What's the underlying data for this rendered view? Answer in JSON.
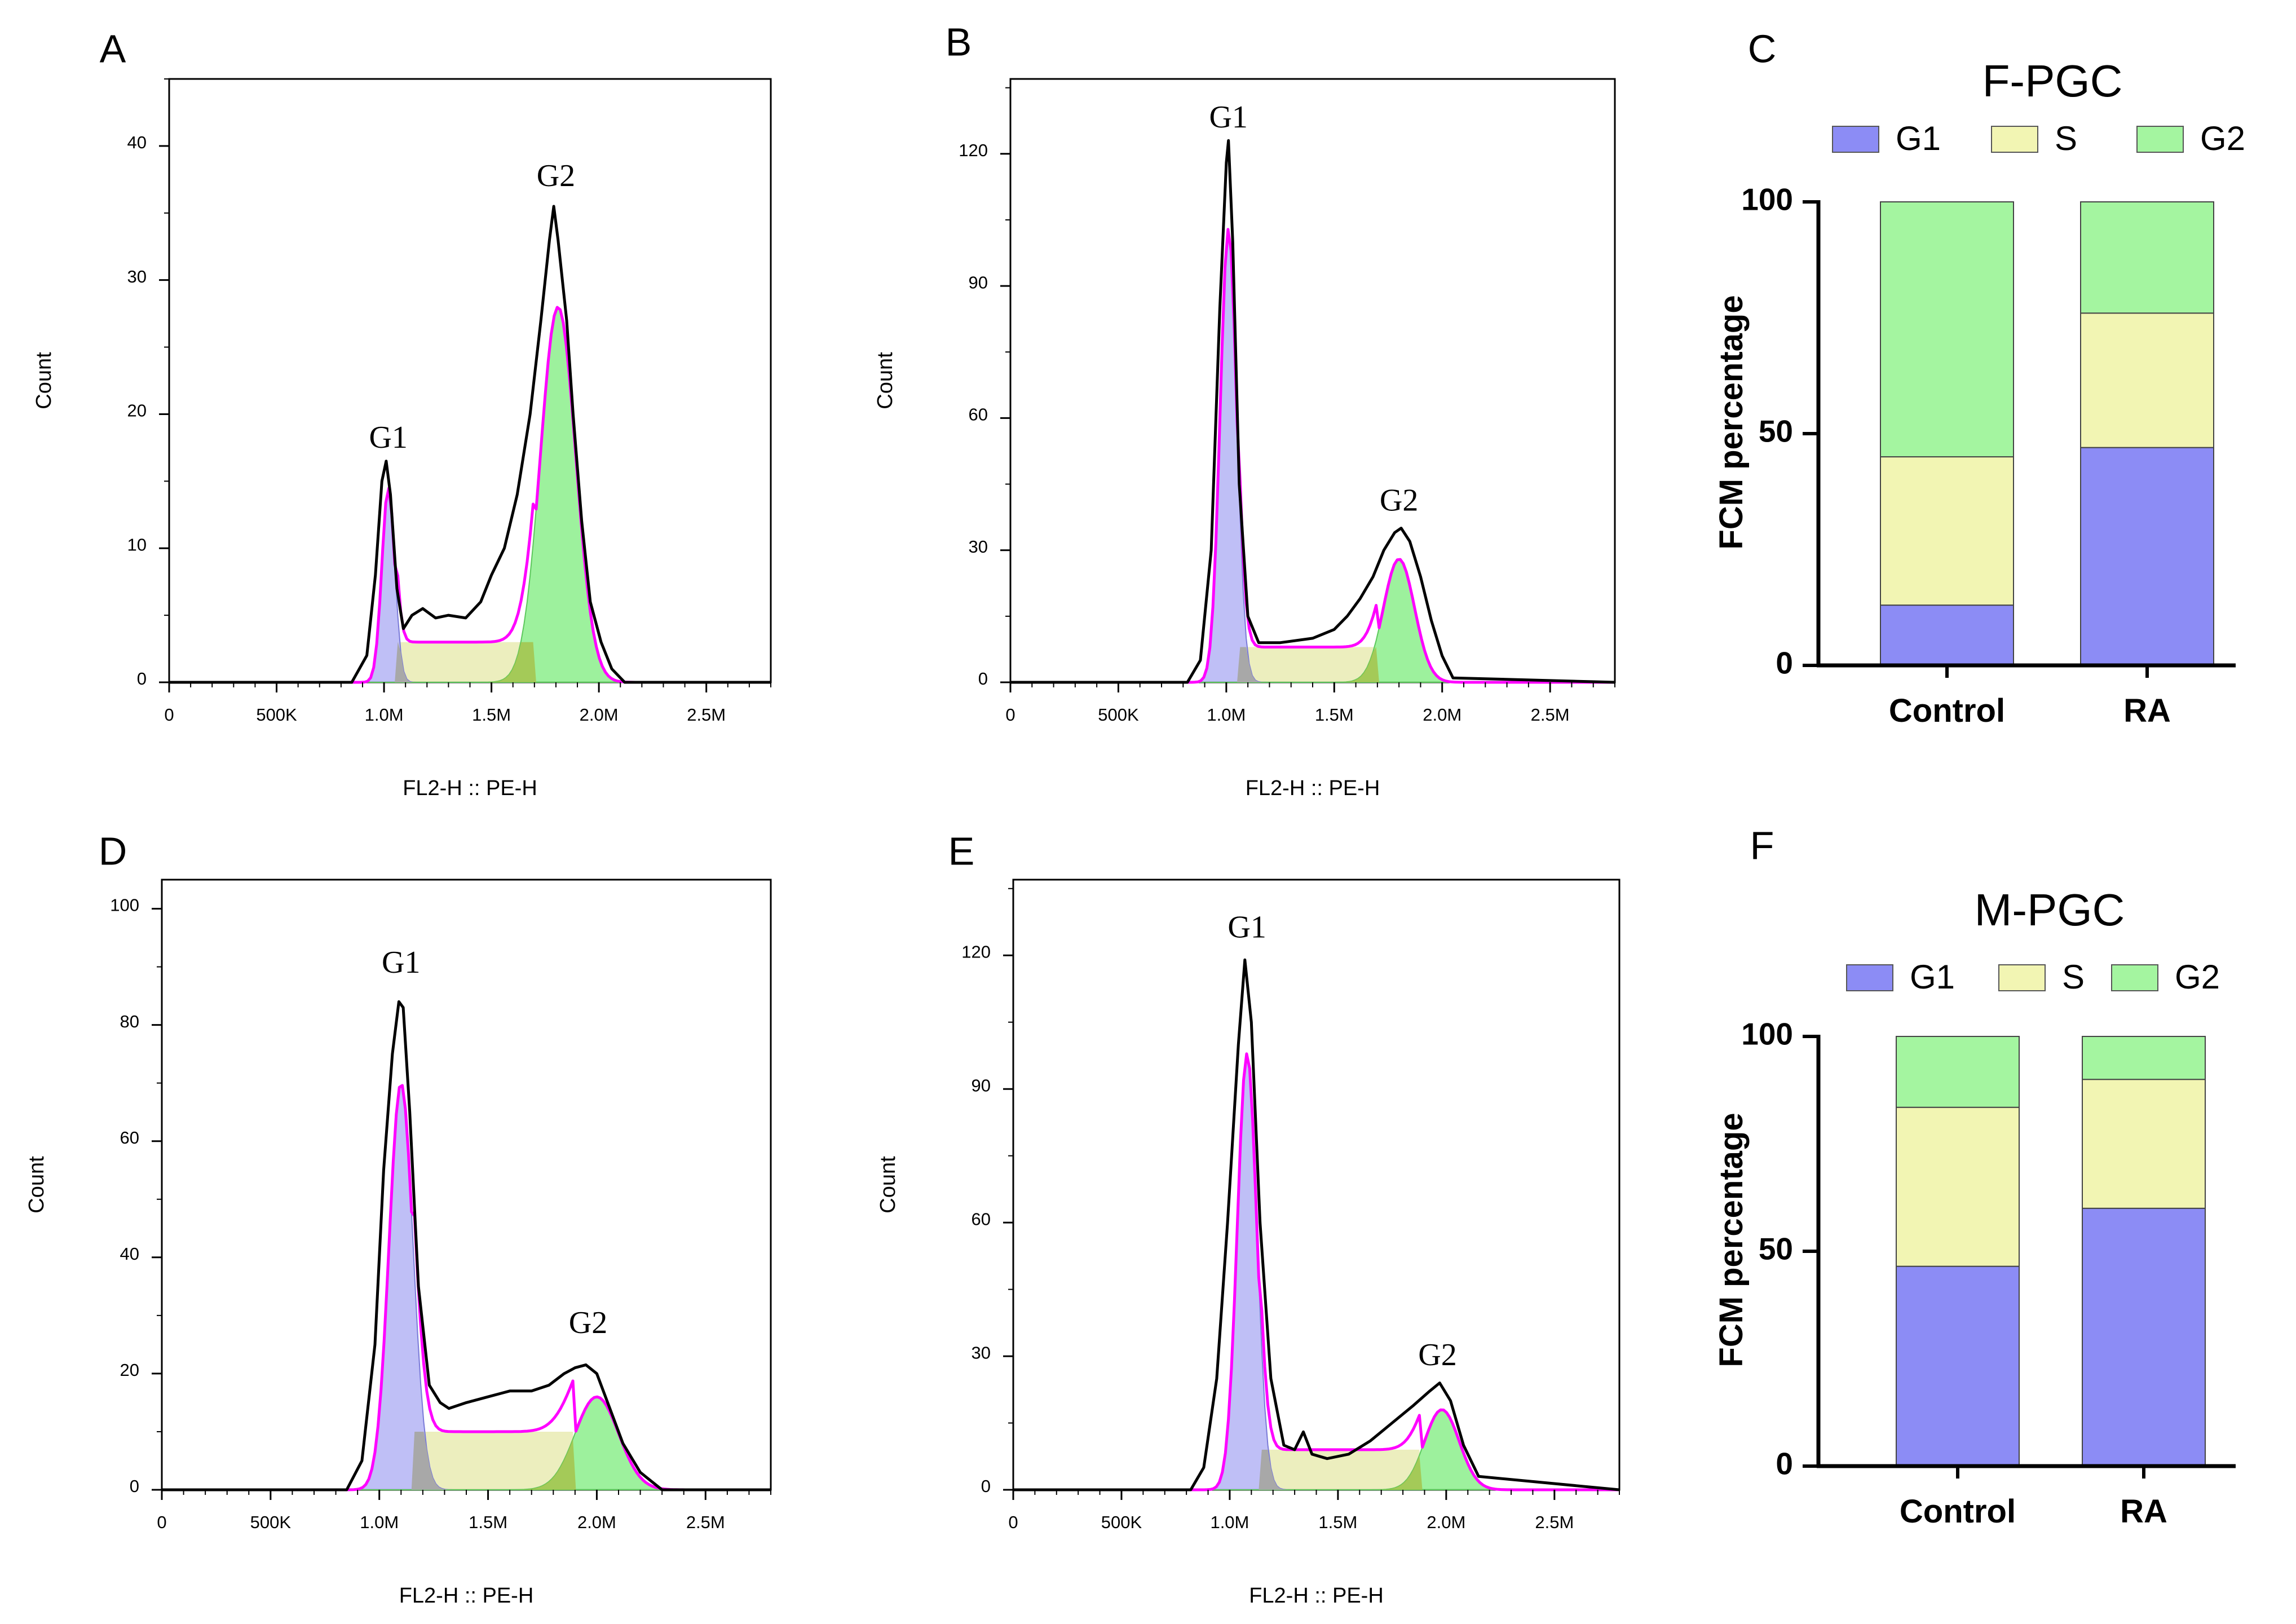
{
  "colors": {
    "g1": "#8c8cf5",
    "s": "#f2f5b3",
    "g2": "#a4f5a0",
    "g1_fill": "#b4b4f5",
    "s_fill": "#e9ebb3",
    "g2_fill": "#8cef8c",
    "overlap": "#a8a8a8",
    "model": "#ff00ff",
    "data": "#000000"
  },
  "chart_data": [
    {
      "id": "A",
      "panel_label": "A",
      "type": "area",
      "xlabel": "FL2-H :: PE-H",
      "ylabel": "Count",
      "xlim": [
        0,
        2800000
      ],
      "ylim": [
        0,
        45
      ],
      "xticks": [
        0,
        500000,
        1000000,
        1500000,
        2000000,
        2500000
      ],
      "xtick_labels": [
        "0",
        "500K",
        "1.0M",
        "1.5M",
        "2.0M",
        "2.5M"
      ],
      "yticks": [
        0,
        10,
        20,
        30,
        40
      ],
      "ytick_labels": [
        "0",
        "10",
        "20",
        "30",
        "40"
      ],
      "peak_labels": [
        {
          "text": "G1",
          "x": 1020000,
          "y": 17.5
        },
        {
          "text": "G2",
          "x": 1800000,
          "y": 37
        }
      ],
      "g1": {
        "mu": 1020000,
        "sd": 30000,
        "h": 14.5
      },
      "g2": {
        "mu": 1810000,
        "sd": 82000,
        "h": 28
      },
      "s_level": 3,
      "s_range": [
        1060000,
        1700000
      ],
      "data_x": [
        0,
        850000,
        920000,
        960000,
        990000,
        1010000,
        1030000,
        1060000,
        1090000,
        1130000,
        1180000,
        1240000,
        1300000,
        1380000,
        1450000,
        1500000,
        1560000,
        1620000,
        1680000,
        1730000,
        1770000,
        1790000,
        1810000,
        1850000,
        1880000,
        1920000,
        1960000,
        2010000,
        2060000,
        2120000,
        2800000
      ],
      "data_y": [
        0,
        0,
        2,
        8,
        15,
        16.5,
        14,
        7,
        4,
        5,
        5.5,
        4.8,
        5,
        4.8,
        6,
        8,
        10,
        14,
        20,
        27,
        33,
        35.5,
        33,
        27,
        20,
        12,
        6,
        3,
        1,
        0,
        0
      ]
    },
    {
      "id": "B",
      "panel_label": "B",
      "type": "area",
      "xlabel": "FL2-H :: PE-H",
      "ylabel": "Count",
      "xlim": [
        0,
        2800000
      ],
      "ylim": [
        0,
        137
      ],
      "xticks": [
        0,
        500000,
        1000000,
        1500000,
        2000000,
        2500000
      ],
      "xtick_labels": [
        "0",
        "500K",
        "1.0M",
        "1.5M",
        "2.0M",
        "2.5M"
      ],
      "yticks": [
        0,
        30,
        60,
        90,
        120
      ],
      "ytick_labels": [
        "0",
        "30",
        "60",
        "90",
        "120"
      ],
      "peak_labels": [
        {
          "text": "G1",
          "x": 1010000,
          "y": 126
        },
        {
          "text": "G2",
          "x": 1800000,
          "y": 39
        }
      ],
      "g1": {
        "mu": 1010000,
        "sd": 38000,
        "h": 103
      },
      "g2": {
        "mu": 1800000,
        "sd": 72000,
        "h": 28
      },
      "s_level": 8,
      "s_range": [
        1060000,
        1700000
      ],
      "data_x": [
        0,
        820000,
        880000,
        930000,
        970000,
        1000000,
        1010000,
        1030000,
        1060000,
        1100000,
        1150000,
        1250000,
        1400000,
        1500000,
        1560000,
        1620000,
        1680000,
        1730000,
        1780000,
        1810000,
        1850000,
        1900000,
        1950000,
        2000000,
        2050000,
        2800000
      ],
      "data_y": [
        0,
        0,
        5,
        30,
        85,
        118,
        123,
        100,
        45,
        15,
        9,
        9,
        10,
        12,
        15,
        19,
        24,
        30,
        34,
        35,
        32,
        24,
        14,
        6,
        1,
        0
      ]
    },
    {
      "id": "D",
      "panel_label": "D",
      "type": "area",
      "xlabel": "FL2-H :: PE-H",
      "ylabel": "Count",
      "xlim": [
        0,
        2800000
      ],
      "ylim": [
        0,
        105
      ],
      "xticks": [
        0,
        500000,
        1000000,
        1500000,
        2000000,
        2500000
      ],
      "xtick_labels": [
        "0",
        "500K",
        "1.0M",
        "1.5M",
        "2.0M",
        "2.5M"
      ],
      "yticks": [
        0,
        20,
        40,
        60,
        80,
        100
      ],
      "ytick_labels": [
        "0",
        "20",
        "40",
        "60",
        "80",
        "100"
      ],
      "peak_labels": [
        {
          "text": "G1",
          "x": 1100000,
          "y": 89
        },
        {
          "text": "G2",
          "x": 1960000,
          "y": 27
        }
      ],
      "g1": {
        "mu": 1100000,
        "sd": 55000,
        "h": 70
      },
      "g2": {
        "mu": 2000000,
        "sd": 100000,
        "h": 16
      },
      "s_level": 10,
      "s_range": [
        1150000,
        1900000
      ],
      "data_x": [
        0,
        850000,
        920000,
        980000,
        1020000,
        1060000,
        1090000,
        1110000,
        1140000,
        1180000,
        1230000,
        1280000,
        1320000,
        1400000,
        1500000,
        1600000,
        1700000,
        1780000,
        1850000,
        1900000,
        1950000,
        2000000,
        2060000,
        2120000,
        2200000,
        2300000,
        2800000
      ],
      "data_y": [
        0,
        0,
        5,
        25,
        55,
        75,
        84,
        83,
        65,
        35,
        18,
        15,
        14,
        15,
        16,
        17,
        17,
        18,
        20,
        21,
        21.5,
        20,
        14,
        8,
        3,
        0,
        0
      ]
    },
    {
      "id": "E",
      "panel_label": "E",
      "type": "area",
      "xlabel": "FL2-H :: PE-H",
      "ylabel": "Count",
      "xlim": [
        0,
        2800000
      ],
      "ylim": [
        0,
        137
      ],
      "xticks": [
        0,
        500000,
        1000000,
        1500000,
        2000000,
        2500000
      ],
      "xtick_labels": [
        "0",
        "500K",
        "1.0M",
        "1.5M",
        "2.0M",
        "2.5M"
      ],
      "yticks": [
        0,
        30,
        60,
        90,
        120
      ],
      "ytick_labels": [
        "0",
        "30",
        "60",
        "90",
        "120"
      ],
      "peak_labels": [
        {
          "text": "G1",
          "x": 1080000,
          "y": 124
        },
        {
          "text": "G2",
          "x": 1960000,
          "y": 28
        }
      ],
      "g1": {
        "mu": 1080000,
        "sd": 45000,
        "h": 98
      },
      "g2": {
        "mu": 1980000,
        "sd": 80000,
        "h": 18
      },
      "s_level": 9,
      "s_range": [
        1140000,
        1880000
      ],
      "data_x": [
        0,
        820000,
        880000,
        940000,
        990000,
        1040000,
        1070000,
        1100000,
        1140000,
        1190000,
        1250000,
        1300000,
        1340000,
        1380000,
        1450000,
        1550000,
        1650000,
        1750000,
        1850000,
        1920000,
        1970000,
        2020000,
        2080000,
        2150000,
        2800000
      ],
      "data_y": [
        0,
        0,
        5,
        25,
        60,
        100,
        119,
        105,
        60,
        25,
        10,
        9,
        13,
        8,
        7,
        8,
        11,
        15,
        19,
        22,
        24,
        20,
        10,
        3,
        0
      ]
    },
    {
      "id": "C",
      "panel_label": "C",
      "type": "bar",
      "stacked": true,
      "title": "F-PGC",
      "ylabel": "FCM percentage",
      "categories": [
        "Control",
        "RA"
      ],
      "ylim": [
        0,
        100
      ],
      "yticks": [
        0,
        50,
        100
      ],
      "ytick_labels": [
        "0",
        "50",
        "100"
      ],
      "series": [
        {
          "name": "G1",
          "values": [
            13,
            47
          ]
        },
        {
          "name": "S",
          "values": [
            32,
            29
          ]
        },
        {
          "name": "G2",
          "values": [
            55,
            24
          ]
        }
      ]
    },
    {
      "id": "F",
      "panel_label": "F",
      "type": "bar",
      "stacked": true,
      "title": "M-PGC",
      "ylabel": "FCM percentage",
      "categories": [
        "Control",
        "RA"
      ],
      "ylim": [
        0,
        100
      ],
      "yticks": [
        0,
        50,
        100
      ],
      "ytick_labels": [
        "0",
        "50",
        "100"
      ],
      "series": [
        {
          "name": "G1",
          "values": [
            46.5,
            60
          ]
        },
        {
          "name": "S",
          "values": [
            37,
            30
          ]
        },
        {
          "name": "G2",
          "values": [
            16.5,
            10
          ]
        }
      ]
    }
  ]
}
